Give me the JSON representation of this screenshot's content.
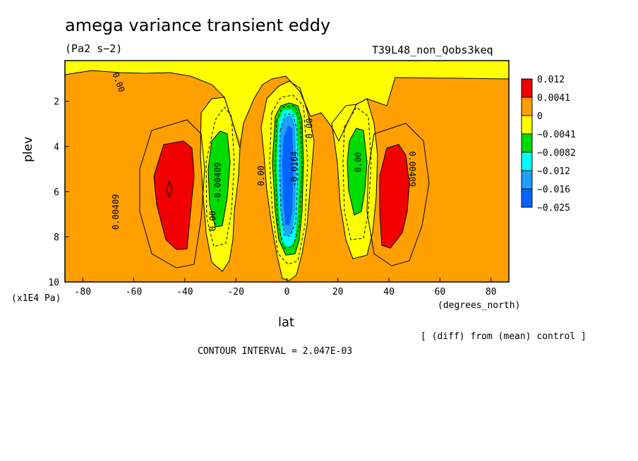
{
  "header": {
    "title": "amega variance transient eddy",
    "units": "(Pa2 s−2)",
    "run_id": "T39L48_non_Qobs3keq"
  },
  "axes": {
    "y_label": "plev",
    "y_units": "(x1E4 Pa)",
    "x_label": "lat",
    "x_units": "(degrees_north)"
  },
  "footer": {
    "diff_note": "[ (diff) from (mean) control ]",
    "contour_interval": "CONTOUR INTERVAL = 2.047E-03"
  },
  "colors": {
    "red": "#f00000",
    "orange": "#ffa000",
    "yellow": "#ffff00",
    "green": "#00dc00",
    "cyan": "#00ffff",
    "lightblue": "#1ea0ff",
    "blue": "#0064ff"
  },
  "chart_data": {
    "type": "contour",
    "xlim": [
      -87,
      87
    ],
    "ylim": [
      10,
      0.2
    ],
    "x_ticks": [
      -80,
      -60,
      -40,
      -20,
      0,
      20,
      40,
      60,
      80
    ],
    "y_ticks": [
      2,
      4,
      6,
      8,
      10
    ],
    "colorbar": {
      "labels": [
        "0.012",
        "0.0041",
        "0",
        "−0.0041",
        "−0.0082",
        "−0.012",
        "−0.016",
        "−0.025"
      ],
      "colors": [
        "#f00000",
        "#ffa000",
        "#ffff00",
        "#00dc00",
        "#00ffff",
        "#1ea0ff",
        "#0064ff"
      ]
    },
    "contour_labels": [
      {
        "text": "0.00",
        "lat": -67,
        "plev": 1.2,
        "angle": 70
      },
      {
        "text": "0.00409",
        "lat": -66,
        "plev": 6.9,
        "angle": -90
      },
      {
        "text": "-0.00409",
        "lat": -26,
        "plev": 5.6,
        "angle": -90
      },
      {
        "text": "0.00",
        "lat": -28,
        "plev": 7.3,
        "angle": -90
      },
      {
        "text": "0.00",
        "lat": -9,
        "plev": 5.3,
        "angle": -90
      },
      {
        "text": "-0.0164",
        "lat": 4,
        "plev": 5.0,
        "angle": -90
      },
      {
        "text": "0.00",
        "lat": 10,
        "plev": 3.2,
        "angle": -90
      },
      {
        "text": "0.00",
        "lat": 29,
        "plev": 4.7,
        "angle": -90
      },
      {
        "text": "0.00409",
        "lat": 48,
        "plev": 5.0,
        "angle": 90
      }
    ]
  }
}
